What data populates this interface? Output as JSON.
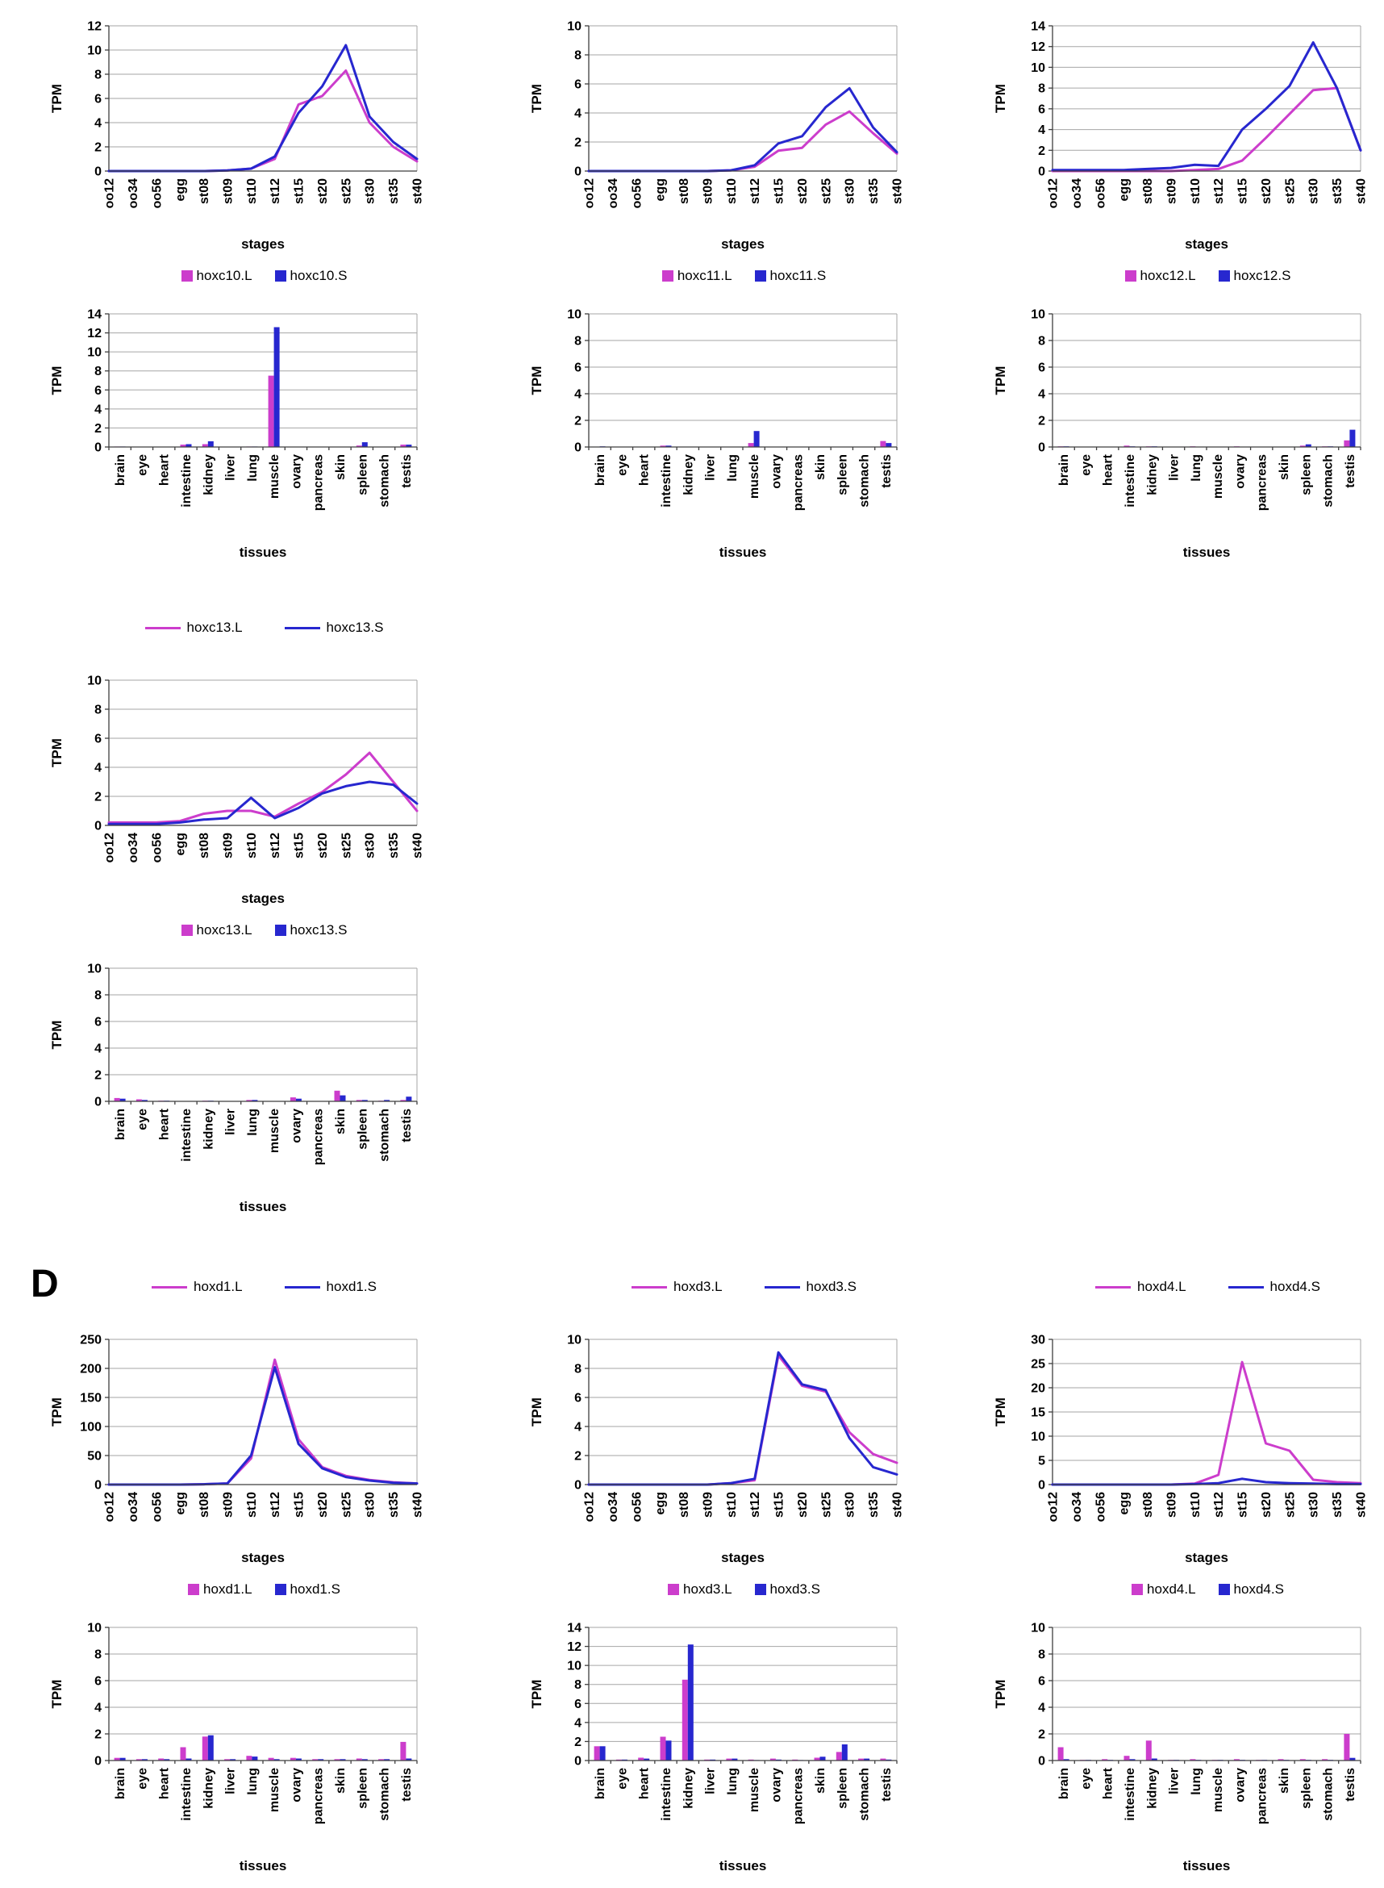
{
  "section_label": "D",
  "colors": {
    "L": "#cc3dcc",
    "S": "#2727cf",
    "grid": "#a6a6a6",
    "axis": "#3f3f3f"
  },
  "stage_categories": [
    "oo12",
    "oo34",
    "oo56",
    "egg",
    "st08",
    "st09",
    "st10",
    "st12",
    "st15",
    "st20",
    "st25",
    "st30",
    "st35",
    "st40"
  ],
  "tissue_categories": [
    "brain",
    "eye",
    "heart",
    "intestine",
    "kidney",
    "liver",
    "lung",
    "muscle",
    "ovary",
    "pancreas",
    "skin",
    "spleen",
    "stomach",
    "testis"
  ],
  "axis_titles": {
    "y": "TPM",
    "x_stages": "stages",
    "x_tissues": "tissues"
  },
  "panels": [
    {
      "gene": "hoxc10",
      "top_legend": false,
      "legend_labels": [
        "hoxc10.L",
        "hoxc10.S"
      ]
    },
    {
      "gene": "hoxc11",
      "top_legend": false,
      "legend_labels": [
        "hoxc11.L",
        "hoxc11.S"
      ]
    },
    {
      "gene": "hoxc12",
      "top_legend": false,
      "legend_labels": [
        "hoxc12.L",
        "hoxc12.S"
      ]
    },
    {
      "gene": "hoxc13",
      "top_legend": true,
      "legend_labels": [
        "hoxc13.L",
        "hoxc13.S"
      ]
    },
    {
      "gene": "hoxd1",
      "top_legend": true,
      "legend_labels": [
        "hoxd1.L",
        "hoxd1.S"
      ]
    },
    {
      "gene": "hoxd3",
      "top_legend": true,
      "legend_labels": [
        "hoxd3.L",
        "hoxd3.S"
      ]
    },
    {
      "gene": "hoxd4",
      "top_legend": true,
      "legend_labels": [
        "hoxd4.L",
        "hoxd4.S"
      ]
    }
  ],
  "chart_data": [
    {
      "id": "hoxc10-stages",
      "type": "line",
      "categories_key": "stages",
      "xlabel": "stages",
      "ylabel": "TPM",
      "ylim": [
        0,
        12
      ],
      "ystep": 2,
      "series": [
        {
          "name": "hoxc10.L",
          "color_key": "L",
          "values": [
            0,
            0,
            0,
            0,
            0,
            0.05,
            0.2,
            1.0,
            5.5,
            6.2,
            8.3,
            4.0,
            2.0,
            0.8
          ]
        },
        {
          "name": "hoxc10.S",
          "color_key": "S",
          "values": [
            0,
            0,
            0,
            0,
            0,
            0.05,
            0.2,
            1.2,
            4.8,
            7.0,
            10.4,
            4.5,
            2.4,
            1.0
          ]
        }
      ]
    },
    {
      "id": "hoxc10-tissues",
      "type": "bar",
      "categories_key": "tissues",
      "xlabel": "tissues",
      "ylabel": "TPM",
      "ylim": [
        0,
        14
      ],
      "ystep": 2,
      "series": [
        {
          "name": "hoxc10.L",
          "color_key": "L",
          "values": [
            0.05,
            0,
            0,
            0.25,
            0.3,
            0,
            0.05,
            7.5,
            0,
            0,
            0,
            0.15,
            0,
            0.25
          ]
        },
        {
          "name": "hoxc10.S",
          "color_key": "S",
          "values": [
            0.05,
            0,
            0,
            0.3,
            0.6,
            0,
            0.05,
            12.6,
            0,
            0,
            0,
            0.5,
            0,
            0.25
          ]
        }
      ]
    },
    {
      "id": "hoxc11-stages",
      "type": "line",
      "categories_key": "stages",
      "xlabel": "stages",
      "ylabel": "TPM",
      "ylim": [
        0,
        10
      ],
      "ystep": 2,
      "series": [
        {
          "name": "hoxc11.L",
          "color_key": "L",
          "values": [
            0,
            0,
            0,
            0,
            0,
            0,
            0.05,
            0.3,
            1.4,
            1.6,
            3.2,
            4.1,
            2.6,
            1.2
          ]
        },
        {
          "name": "hoxc11.S",
          "color_key": "S",
          "values": [
            0,
            0,
            0,
            0,
            0,
            0,
            0.05,
            0.4,
            1.9,
            2.4,
            4.4,
            5.7,
            3.0,
            1.3
          ]
        }
      ]
    },
    {
      "id": "hoxc11-tissues",
      "type": "bar",
      "categories_key": "tissues",
      "xlabel": "tissues",
      "ylabel": "TPM",
      "ylim": [
        0,
        10
      ],
      "ystep": 2,
      "series": [
        {
          "name": "hoxc11.L",
          "color_key": "L",
          "values": [
            0,
            0,
            0,
            0.1,
            0,
            0,
            0,
            0.3,
            0,
            0,
            0,
            0,
            0,
            0.45
          ]
        },
        {
          "name": "hoxc11.S",
          "color_key": "S",
          "values": [
            0.05,
            0,
            0,
            0.1,
            0,
            0,
            0,
            1.2,
            0,
            0,
            0,
            0,
            0,
            0.3
          ]
        }
      ]
    },
    {
      "id": "hoxc12-stages",
      "type": "line",
      "categories_key": "stages",
      "xlabel": "stages",
      "ylabel": "TPM",
      "ylim": [
        0,
        14
      ],
      "ystep": 2,
      "series": [
        {
          "name": "hoxc12.L",
          "color_key": "L",
          "values": [
            0,
            0,
            0,
            0,
            0,
            0,
            0.1,
            0.2,
            1.0,
            3.2,
            5.5,
            7.8,
            8.0,
            2.0
          ]
        },
        {
          "name": "hoxc12.S",
          "color_key": "S",
          "values": [
            0.1,
            0.1,
            0.1,
            0.1,
            0.2,
            0.3,
            0.6,
            0.5,
            4.0,
            6.0,
            8.2,
            12.4,
            8.0,
            2.0
          ]
        }
      ]
    },
    {
      "id": "hoxc12-tissues",
      "type": "bar",
      "categories_key": "tissues",
      "xlabel": "tissues",
      "ylabel": "TPM",
      "ylim": [
        0,
        10
      ],
      "ystep": 2,
      "series": [
        {
          "name": "hoxc12.L",
          "color_key": "L",
          "values": [
            0.05,
            0,
            0,
            0.1,
            0.05,
            0,
            0.05,
            0,
            0.05,
            0,
            0,
            0.1,
            0.05,
            0.5
          ]
        },
        {
          "name": "hoxc12.S",
          "color_key": "S",
          "values": [
            0.05,
            0,
            0,
            0.05,
            0.05,
            0,
            0,
            0,
            0,
            0,
            0,
            0.2,
            0.05,
            1.3
          ]
        }
      ]
    },
    {
      "id": "hoxc13-stages",
      "type": "line",
      "categories_key": "stages",
      "xlabel": "stages",
      "ylabel": "TPM",
      "ylim": [
        0,
        10
      ],
      "ystep": 2,
      "series": [
        {
          "name": "hoxc13.L",
          "color_key": "L",
          "values": [
            0.2,
            0.2,
            0.2,
            0.3,
            0.8,
            1.0,
            1.0,
            0.6,
            1.5,
            2.3,
            3.5,
            5.0,
            3.0,
            1.0
          ]
        },
        {
          "name": "hoxc13.S",
          "color_key": "S",
          "values": [
            0.1,
            0.1,
            0.1,
            0.2,
            0.4,
            0.5,
            1.9,
            0.5,
            1.2,
            2.2,
            2.7,
            3.0,
            2.8,
            1.5
          ]
        }
      ]
    },
    {
      "id": "hoxc13-tissues",
      "type": "bar",
      "categories_key": "tissues",
      "xlabel": "tissues",
      "ylabel": "TPM",
      "ylim": [
        0,
        10
      ],
      "ystep": 2,
      "series": [
        {
          "name": "hoxc13.L",
          "color_key": "L",
          "values": [
            0.25,
            0.15,
            0.05,
            0,
            0.05,
            0,
            0.1,
            0,
            0.3,
            0,
            0.8,
            0.1,
            0.05,
            0.1
          ]
        },
        {
          "name": "hoxc13.S",
          "color_key": "S",
          "values": [
            0.2,
            0.1,
            0.05,
            0,
            0.05,
            0,
            0.1,
            0,
            0.2,
            0,
            0.45,
            0.1,
            0.1,
            0.35
          ]
        }
      ]
    },
    {
      "id": "hoxd1-stages",
      "type": "line",
      "categories_key": "stages",
      "xlabel": "stages",
      "ylabel": "TPM",
      "ylim": [
        0,
        250
      ],
      "ystep": 50,
      "series": [
        {
          "name": "hoxd1.L",
          "color_key": "L",
          "values": [
            0,
            0,
            0,
            0,
            0.5,
            2,
            45,
            215,
            78,
            30,
            15,
            8,
            4,
            2
          ]
        },
        {
          "name": "hoxd1.S",
          "color_key": "S",
          "values": [
            0,
            0,
            0,
            0,
            0.5,
            2,
            50,
            202,
            70,
            28,
            13,
            7,
            3,
            2
          ]
        }
      ]
    },
    {
      "id": "hoxd1-tissues",
      "type": "bar",
      "categories_key": "tissues",
      "xlabel": "tissues",
      "ylabel": "TPM",
      "ylim": [
        0,
        10
      ],
      "ystep": 2,
      "series": [
        {
          "name": "hoxd1.L",
          "color_key": "L",
          "values": [
            0.2,
            0.1,
            0.15,
            1.0,
            1.8,
            0.1,
            0.35,
            0.2,
            0.2,
            0.1,
            0.1,
            0.15,
            0.1,
            1.4
          ]
        },
        {
          "name": "hoxd1.S",
          "color_key": "S",
          "values": [
            0.2,
            0.1,
            0.1,
            0.15,
            1.9,
            0.1,
            0.3,
            0.1,
            0.15,
            0.1,
            0.1,
            0.1,
            0.1,
            0.15
          ]
        }
      ]
    },
    {
      "id": "hoxd3-stages",
      "type": "line",
      "categories_key": "stages",
      "xlabel": "stages",
      "ylabel": "TPM",
      "ylim": [
        0,
        10
      ],
      "ystep": 2,
      "series": [
        {
          "name": "hoxd3.L",
          "color_key": "L",
          "values": [
            0,
            0,
            0,
            0,
            0,
            0,
            0.1,
            0.3,
            8.9,
            6.8,
            6.4,
            3.6,
            2.1,
            1.5
          ]
        },
        {
          "name": "hoxd3.S",
          "color_key": "S",
          "values": [
            0,
            0,
            0,
            0,
            0,
            0,
            0.1,
            0.4,
            9.1,
            6.9,
            6.5,
            3.2,
            1.2,
            0.7
          ]
        }
      ]
    },
    {
      "id": "hoxd3-tissues",
      "type": "bar",
      "categories_key": "tissues",
      "xlabel": "tissues",
      "ylabel": "TPM",
      "ylim": [
        0,
        14
      ],
      "ystep": 2,
      "series": [
        {
          "name": "hoxd3.L",
          "color_key": "L",
          "values": [
            1.5,
            0.1,
            0.3,
            2.5,
            8.5,
            0.1,
            0.2,
            0.1,
            0.2,
            0.1,
            0.3,
            0.9,
            0.2,
            0.2
          ]
        },
        {
          "name": "hoxd3.S",
          "color_key": "S",
          "values": [
            1.5,
            0.1,
            0.2,
            2.1,
            12.2,
            0.1,
            0.2,
            0.05,
            0.1,
            0.05,
            0.4,
            1.7,
            0.2,
            0.1
          ]
        }
      ]
    },
    {
      "id": "hoxd4-stages",
      "type": "line",
      "categories_key": "stages",
      "xlabel": "stages",
      "ylabel": "TPM",
      "ylim": [
        0,
        30
      ],
      "ystep": 5,
      "series": [
        {
          "name": "hoxd4.L",
          "color_key": "L",
          "values": [
            0,
            0,
            0,
            0,
            0,
            0,
            0.2,
            2.0,
            25.3,
            8.5,
            7.0,
            1.0,
            0.5,
            0.3
          ]
        },
        {
          "name": "hoxd4.S",
          "color_key": "S",
          "values": [
            0,
            0,
            0,
            0,
            0,
            0,
            0.1,
            0.3,
            1.2,
            0.5,
            0.3,
            0.2,
            0.1,
            0.1
          ]
        }
      ]
    },
    {
      "id": "hoxd4-tissues",
      "type": "bar",
      "categories_key": "tissues",
      "xlabel": "tissues",
      "ylabel": "TPM",
      "ylim": [
        0,
        10
      ],
      "ystep": 2,
      "series": [
        {
          "name": "hoxd4.L",
          "color_key": "L",
          "values": [
            1.0,
            0.05,
            0.1,
            0.35,
            1.5,
            0.05,
            0.1,
            0.05,
            0.1,
            0.05,
            0.1,
            0.1,
            0.1,
            2.0
          ]
        },
        {
          "name": "hoxd4.S",
          "color_key": "S",
          "values": [
            0.1,
            0.05,
            0.05,
            0.1,
            0.15,
            0.05,
            0.05,
            0.05,
            0.05,
            0.05,
            0.05,
            0.05,
            0.05,
            0.2
          ]
        }
      ]
    }
  ]
}
